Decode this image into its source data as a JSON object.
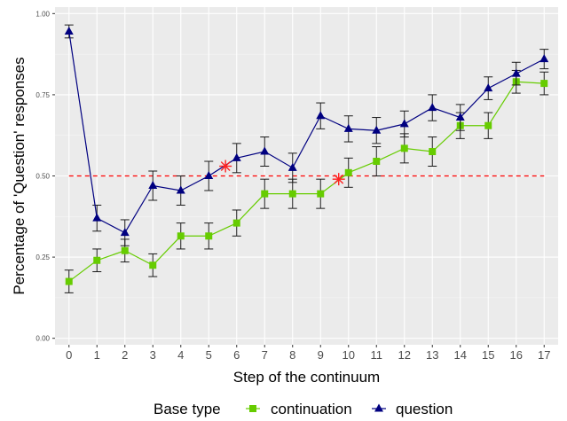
{
  "chart_data": {
    "type": "line",
    "xlabel": "Step of the continuum",
    "ylabel": "Percentage of 'Question' responses",
    "x": [
      0,
      1,
      2,
      3,
      4,
      5,
      6,
      7,
      8,
      9,
      10,
      11,
      12,
      13,
      14,
      15,
      16,
      17
    ],
    "x_tick_labels": [
      "0",
      "1",
      "2",
      "3",
      "4",
      "5",
      "6",
      "7",
      "8",
      "9",
      "10",
      "11",
      "12",
      "13",
      "14",
      "15",
      "16",
      "17"
    ],
    "xlim": [
      -0.5,
      17.5
    ],
    "ylim": [
      -0.02,
      1.02
    ],
    "y_ticks": [
      0.0,
      0.25,
      0.5,
      0.75,
      1.0
    ],
    "y_tick_labels": [
      "0.00",
      "0.25",
      "0.50",
      "0.75",
      "1.00"
    ],
    "grid": true,
    "legend": {
      "title": "Base type",
      "position": "bottom",
      "entries": [
        "continuation",
        "question"
      ]
    },
    "series": [
      {
        "name": "continuation",
        "color": "#66cc00",
        "marker": "square",
        "values": [
          0.175,
          0.24,
          0.27,
          0.225,
          0.315,
          0.315,
          0.355,
          0.445,
          0.445,
          0.445,
          0.51,
          0.545,
          0.585,
          0.575,
          0.655,
          0.655,
          0.79,
          0.785
        ],
        "error": [
          0.035,
          0.035,
          0.035,
          0.035,
          0.04,
          0.04,
          0.04,
          0.045,
          0.045,
          0.045,
          0.045,
          0.045,
          0.045,
          0.045,
          0.04,
          0.04,
          0.035,
          0.035
        ]
      },
      {
        "name": "question",
        "color": "#000080",
        "marker": "triangle",
        "values": [
          0.945,
          0.37,
          0.325,
          0.47,
          0.455,
          0.5,
          0.555,
          0.575,
          0.525,
          0.685,
          0.645,
          0.64,
          0.66,
          0.71,
          0.68,
          0.77,
          0.815,
          0.86
        ],
        "error": [
          0.02,
          0.04,
          0.04,
          0.045,
          0.045,
          0.045,
          0.045,
          0.045,
          0.045,
          0.04,
          0.04,
          0.04,
          0.04,
          0.04,
          0.04,
          0.035,
          0.035,
          0.03
        ]
      }
    ],
    "reference_line": {
      "y": 0.5,
      "color": "#ff0000",
      "style": "dashed"
    },
    "crossover_markers": [
      {
        "x": 5.6,
        "y": 0.53,
        "color": "#ff2020"
      },
      {
        "x": 9.65,
        "y": 0.49,
        "color": "#ff2020"
      }
    ]
  }
}
